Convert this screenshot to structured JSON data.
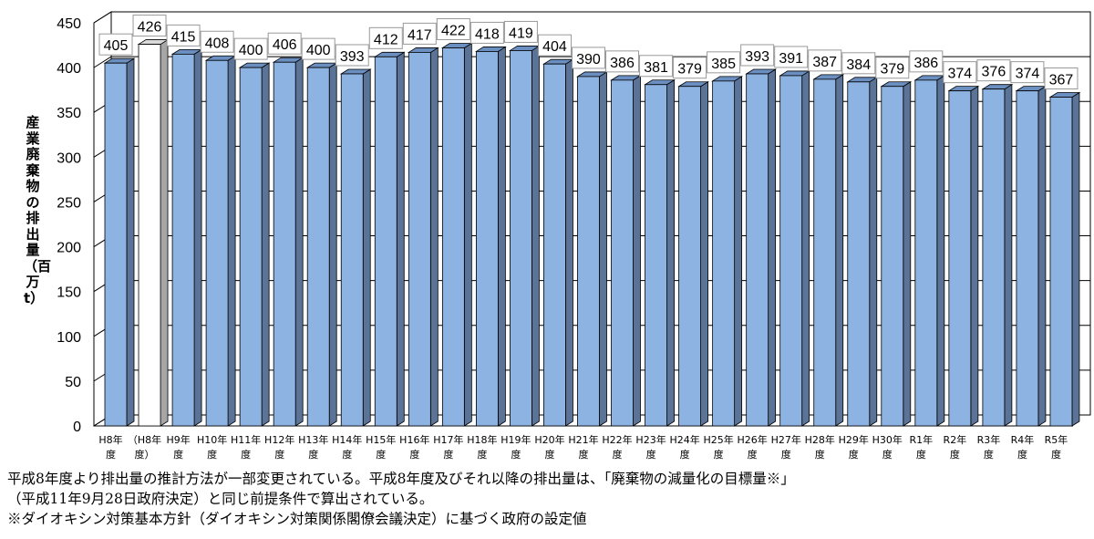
{
  "chart_data": {
    "type": "bar",
    "style": "3d-column",
    "ylabel": "産業廃棄物の排出量（百万t）",
    "ylim": [
      0,
      450
    ],
    "yticks": [
      0,
      50,
      100,
      150,
      200,
      250,
      300,
      350,
      400,
      450
    ],
    "grid": true,
    "categories": [
      [
        "H8年",
        "度"
      ],
      [
        "（H8年",
        "度）"
      ],
      [
        "H9年",
        "度"
      ],
      [
        "H10年",
        "度"
      ],
      [
        "H11年",
        "度"
      ],
      [
        "H12年",
        "度"
      ],
      [
        "H13年",
        "度"
      ],
      [
        "H14年",
        "度"
      ],
      [
        "H15年",
        "度"
      ],
      [
        "H16年",
        "度"
      ],
      [
        "H17年",
        "度"
      ],
      [
        "H18年",
        "度"
      ],
      [
        "H19年",
        "度"
      ],
      [
        "H20年",
        "度"
      ],
      [
        "H21年",
        "度"
      ],
      [
        "H22年",
        "度"
      ],
      [
        "H23年",
        "度"
      ],
      [
        "H24年",
        "度"
      ],
      [
        "H25年",
        "度"
      ],
      [
        "H26年",
        "度"
      ],
      [
        "H27年",
        "度"
      ],
      [
        "H28年",
        "度"
      ],
      [
        "H29年",
        "度"
      ],
      [
        "H30年",
        "度"
      ],
      [
        "R1年",
        "度"
      ],
      [
        "R2年",
        "度"
      ],
      [
        "R3年",
        "度"
      ],
      [
        "R4年",
        "度"
      ],
      [
        "R5年",
        "度"
      ]
    ],
    "values": [
      405,
      426,
      415,
      408,
      400,
      406,
      400,
      393,
      412,
      417,
      422,
      418,
      419,
      404,
      390,
      386,
      381,
      379,
      385,
      393,
      391,
      387,
      384,
      379,
      386,
      374,
      376,
      374,
      367
    ],
    "highlight_index": 1,
    "colors": {
      "bar": "#8db3e2",
      "bar_side": "#5a7396",
      "bar_top": "#6b8fc0",
      "highlight": "#ffffff",
      "highlight_side": "#a6a6a6"
    }
  },
  "notes": [
    "平成8年度より排出量の推計方法が一部変更されている。平成8年度及びそれ以降の排出量は、「廃棄物の減量化の目標量※」",
    "（平成11年9月28日政府決定）と同じ前提条件で算出されている。",
    "※ダイオキシン対策基本方針（ダイオキシン対策関係閣僚会議決定）に基づく政府の設定値"
  ]
}
